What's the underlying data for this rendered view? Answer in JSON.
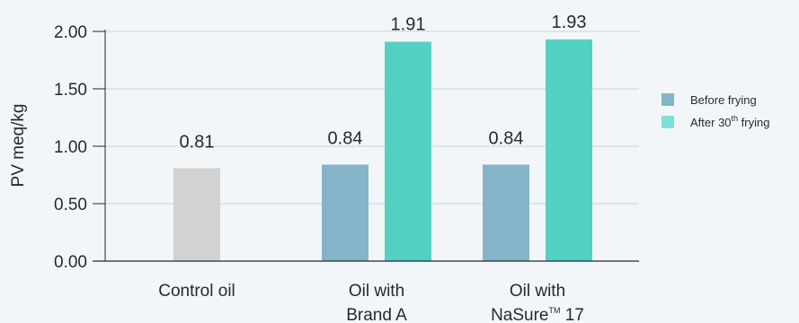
{
  "chart_data": {
    "type": "bar",
    "ylabel": "PV meq/kg",
    "ylim": [
      0,
      2.0
    ],
    "yticks": [
      "0.00",
      "0.50",
      "1.00",
      "1.50",
      "2.00"
    ],
    "grid": true,
    "legend_position": "right",
    "categories": [
      {
        "lines": [
          "Control oil"
        ]
      },
      {
        "lines": [
          "Oil with",
          "Brand A"
        ]
      },
      {
        "lines": [
          "Oil with",
          "NaSure™ 17"
        ]
      }
    ],
    "series": [
      {
        "name": "Before frying",
        "values": [
          0.81,
          0.84,
          0.84
        ],
        "labels": [
          "0.81",
          "0.84",
          "0.84"
        ]
      },
      {
        "name": "After 30th frying",
        "values": [
          null,
          1.91,
          1.93
        ],
        "labels": [
          "",
          "1.91",
          "1.93"
        ]
      }
    ],
    "colors": {
      "control": "#d2d2d3",
      "before": "#85b4c8",
      "after": "#52d1c3",
      "legend_after": "#7fe0d6",
      "grid": "#c9d1d6",
      "axis": "#1f2a33"
    }
  }
}
